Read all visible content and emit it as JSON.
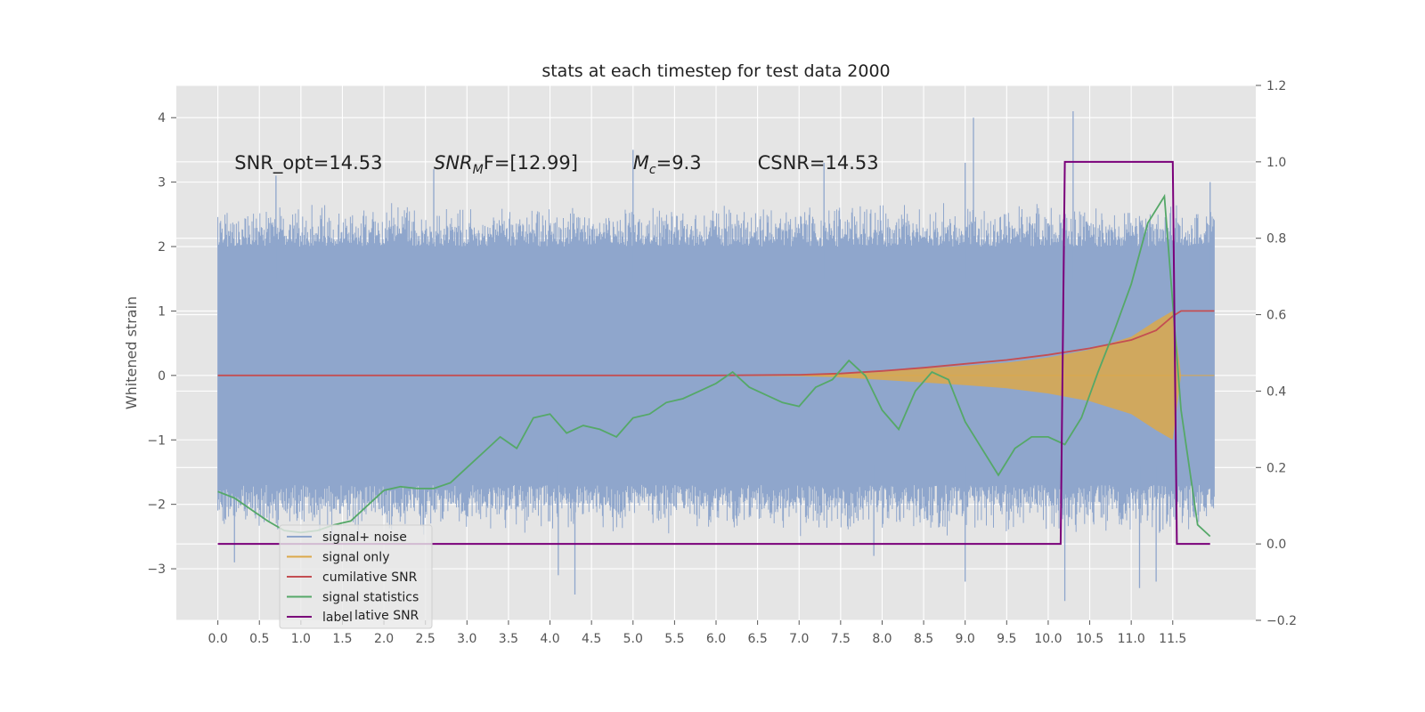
{
  "chart_data": {
    "type": "line",
    "title": "stats at each timestep for test data 2000",
    "ylabel": "Whitened strain",
    "xlim": [
      -0.5,
      12.5
    ],
    "ylim": [
      -3.8,
      4.5
    ],
    "y2lim": [
      -0.2,
      1.2
    ],
    "x_ticks": [
      "0.0",
      "0.5",
      "1.0",
      "1.5",
      "2.0",
      "2.5",
      "3.0",
      "3.5",
      "4.0",
      "4.5",
      "5.0",
      "5.5",
      "6.0",
      "6.5",
      "7.0",
      "7.5",
      "8.0",
      "8.5",
      "9.0",
      "9.5",
      "10.0",
      "10.5",
      "11.0",
      "11.5"
    ],
    "y_ticks": [
      -3,
      -2,
      -1,
      0,
      1,
      2,
      3,
      4
    ],
    "y_tick_labels": [
      "−3",
      "−2",
      "−1",
      "0",
      "1",
      "2",
      "3",
      "4"
    ],
    "y2_ticks": [
      -0.2,
      0.0,
      0.2,
      0.4,
      0.6,
      0.8,
      1.0,
      1.2
    ],
    "y2_tick_labels": [
      "−0.2",
      "0.0",
      "0.2",
      "0.4",
      "0.6",
      "0.8",
      "1.0",
      "1.2"
    ],
    "grid": true,
    "legend_position": "lower-left",
    "colors": {
      "background": "#e5e5e5",
      "grid": "#ffffff",
      "signal_noise": "#8fa6cc",
      "signal_only": "#dca84a",
      "cumulative_snr": "#c44e52",
      "statistics": "#55a868",
      "label": "#7a007a"
    },
    "annotations": [
      {
        "text": "SNR_opt=14.53",
        "x": 0.2,
        "y": 3.3
      },
      {
        "text": "SNR_MF=[12.99]",
        "x": 2.6,
        "y": 3.3,
        "main": "SNR",
        "sub": "M",
        "rest": "F=[12.99]"
      },
      {
        "text": "M_c=9.3",
        "x": 5.0,
        "y": 3.3,
        "main": "M",
        "sub": "c",
        "rest": "=9.3"
      },
      {
        "text": "CSNR=14.53",
        "x": 6.5,
        "y": 3.3
      }
    ],
    "series": [
      {
        "name": "signal+ noise",
        "axis": "left",
        "style": "noise-band",
        "x_range": [
          0.0,
          12.0
        ],
        "core_range": [
          -1.5,
          1.6
        ],
        "envelope_upper": [
          2.0,
          2.7
        ],
        "envelope_lower": [
          -1.7,
          -2.5
        ],
        "peaks": [
          {
            "x": 0.7,
            "y": 3.1
          },
          {
            "x": 2.6,
            "y": 3.2
          },
          {
            "x": 5.0,
            "y": 3.5
          },
          {
            "x": 7.3,
            "y": 3.3
          },
          {
            "x": 9.0,
            "y": 3.3
          },
          {
            "x": 9.1,
            "y": 4.0
          },
          {
            "x": 10.3,
            "y": 4.1
          },
          {
            "x": 11.95,
            "y": 3.0
          },
          {
            "x": 0.2,
            "y": -2.9
          },
          {
            "x": 4.3,
            "y": -3.4
          },
          {
            "x": 4.1,
            "y": -3.1
          },
          {
            "x": 9.0,
            "y": -3.2
          },
          {
            "x": 10.2,
            "y": -3.5
          },
          {
            "x": 11.1,
            "y": -3.3
          },
          {
            "x": 11.3,
            "y": -3.2
          },
          {
            "x": 7.9,
            "y": -2.8
          }
        ]
      },
      {
        "name": "signal only",
        "axis": "left",
        "style": "chirp-band",
        "x": [
          0.0,
          7.0,
          7.5,
          8.0,
          8.5,
          9.0,
          9.5,
          10.0,
          10.5,
          11.0,
          11.3,
          11.5,
          11.6,
          12.0
        ],
        "amplitude": [
          0.0,
          0.01,
          0.03,
          0.07,
          0.11,
          0.15,
          0.2,
          0.28,
          0.4,
          0.6,
          0.85,
          1.0,
          0.0,
          0.0
        ]
      },
      {
        "name": "cumilative SNR",
        "axis": "left",
        "x": [
          0.0,
          6.0,
          7.0,
          7.5,
          8.0,
          8.5,
          9.0,
          9.5,
          10.0,
          10.5,
          11.0,
          11.3,
          11.5,
          11.6,
          12.0
        ],
        "y": [
          0.0,
          0.0,
          0.01,
          0.03,
          0.07,
          0.12,
          0.18,
          0.24,
          0.32,
          0.42,
          0.55,
          0.7,
          0.92,
          1.0,
          1.0
        ]
      },
      {
        "name": "signal statistics",
        "axis": "right",
        "x": [
          0.0,
          0.2,
          0.4,
          0.6,
          0.8,
          1.0,
          1.2,
          1.4,
          1.6,
          1.8,
          2.0,
          2.2,
          2.4,
          2.6,
          2.8,
          3.0,
          3.2,
          3.4,
          3.6,
          3.8,
          4.0,
          4.2,
          4.4,
          4.6,
          4.8,
          5.0,
          5.2,
          5.4,
          5.6,
          5.8,
          6.0,
          6.2,
          6.4,
          6.6,
          6.8,
          7.0,
          7.2,
          7.4,
          7.6,
          7.8,
          8.0,
          8.2,
          8.4,
          8.6,
          8.8,
          9.0,
          9.2,
          9.4,
          9.6,
          9.8,
          10.0,
          10.2,
          10.4,
          10.6,
          10.8,
          11.0,
          11.2,
          11.4,
          11.6,
          11.8,
          11.95
        ],
        "y": [
          0.137,
          0.12,
          0.09,
          0.06,
          0.035,
          0.03,
          0.035,
          0.05,
          0.06,
          0.1,
          0.14,
          0.15,
          0.145,
          0.145,
          0.16,
          0.2,
          0.24,
          0.28,
          0.25,
          0.33,
          0.34,
          0.29,
          0.31,
          0.3,
          0.28,
          0.33,
          0.34,
          0.37,
          0.38,
          0.4,
          0.42,
          0.45,
          0.41,
          0.39,
          0.37,
          0.36,
          0.41,
          0.43,
          0.48,
          0.44,
          0.35,
          0.3,
          0.4,
          0.45,
          0.43,
          0.32,
          0.25,
          0.18,
          0.25,
          0.28,
          0.28,
          0.26,
          0.33,
          0.45,
          0.56,
          0.68,
          0.84,
          0.91,
          0.35,
          0.05,
          0.02
        ]
      },
      {
        "name": "label",
        "axis": "right",
        "x": [
          0.0,
          10.15,
          10.2,
          11.5,
          11.55,
          11.95
        ],
        "y": [
          0.0,
          0.0,
          1.0,
          1.0,
          0.0,
          0.0
        ]
      }
    ],
    "legend_entries": [
      "signal+ noise",
      "signal only",
      "cumilative SNR",
      "signal statistics",
      "label"
    ],
    "legend_ghost_text": "lative SNR"
  }
}
